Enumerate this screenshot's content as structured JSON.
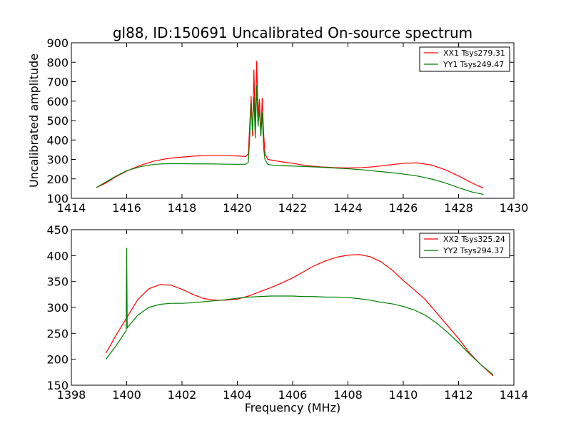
{
  "chart_data": [
    {
      "type": "line",
      "title": "gl88, ID:150691 Uncalibrated On-source spectrum",
      "xlabel": "",
      "ylabel": "Uncalibrated amplitude",
      "xlim": [
        1414,
        1430
      ],
      "ylim": [
        100,
        900
      ],
      "xticks": [
        1414,
        1416,
        1418,
        1420,
        1422,
        1424,
        1426,
        1428,
        1430
      ],
      "yticks": [
        100,
        200,
        300,
        400,
        500,
        600,
        700,
        800,
        900
      ],
      "grid": false,
      "legend_position": "top-right",
      "series": [
        {
          "name": "XX1 Tsys279.31",
          "color": "#ff0000",
          "x": [
            1414.9,
            1415.2,
            1415.6,
            1416.0,
            1416.5,
            1417.0,
            1417.5,
            1418.0,
            1418.5,
            1419.0,
            1419.5,
            1420.0,
            1420.3,
            1420.4,
            1420.45,
            1420.5,
            1420.55,
            1420.6,
            1420.65,
            1420.7,
            1420.75,
            1420.8,
            1420.85,
            1420.9,
            1420.95,
            1421.0,
            1421.1,
            1421.3,
            1421.5,
            1422.0,
            1422.5,
            1423.0,
            1423.5,
            1424.0,
            1424.5,
            1425.0,
            1425.5,
            1426.0,
            1426.5,
            1427.0,
            1427.5,
            1428.0,
            1428.5,
            1428.9
          ],
          "y": [
            155,
            175,
            210,
            240,
            270,
            292,
            305,
            312,
            318,
            320,
            320,
            318,
            315,
            330,
            480,
            625,
            420,
            760,
            460,
            805,
            520,
            610,
            420,
            615,
            440,
            330,
            300,
            295,
            290,
            280,
            268,
            262,
            258,
            256,
            258,
            263,
            272,
            280,
            282,
            272,
            248,
            215,
            178,
            152
          ]
        },
        {
          "name": "YY1 Tsys249.47",
          "color": "#008000",
          "x": [
            1414.9,
            1415.2,
            1415.6,
            1416.0,
            1416.5,
            1417.0,
            1417.5,
            1418.0,
            1418.5,
            1419.0,
            1419.5,
            1420.0,
            1420.3,
            1420.4,
            1420.45,
            1420.5,
            1420.55,
            1420.6,
            1420.65,
            1420.7,
            1420.75,
            1420.8,
            1420.85,
            1420.9,
            1420.95,
            1421.0,
            1421.1,
            1421.3,
            1421.5,
            1422.0,
            1422.5,
            1423.0,
            1423.5,
            1424.0,
            1424.5,
            1425.0,
            1425.5,
            1426.0,
            1426.5,
            1427.0,
            1427.5,
            1428.0,
            1428.5,
            1428.9
          ],
          "y": [
            155,
            180,
            213,
            242,
            263,
            275,
            278,
            278,
            277,
            277,
            276,
            275,
            275,
            285,
            420,
            590,
            450,
            620,
            410,
            680,
            470,
            560,
            420,
            540,
            360,
            300,
            275,
            270,
            268,
            266,
            263,
            260,
            256,
            252,
            247,
            240,
            233,
            225,
            215,
            200,
            180,
            155,
            132,
            120
          ]
        }
      ]
    },
    {
      "type": "line",
      "title": "",
      "xlabel": "Frequency (MHz)",
      "ylabel": "",
      "xlim": [
        1398,
        1414
      ],
      "ylim": [
        150,
        450
      ],
      "xticks": [
        1398,
        1400,
        1402,
        1404,
        1406,
        1408,
        1410,
        1412,
        1414
      ],
      "yticks": [
        150,
        200,
        250,
        300,
        350,
        400,
        450
      ],
      "grid": false,
      "legend_position": "top-right",
      "series": [
        {
          "name": "XX2 Tsys325.24",
          "color": "#ff0000",
          "x": [
            1399.25,
            1399.6,
            1400.0,
            1400.4,
            1400.8,
            1401.2,
            1401.6,
            1402.0,
            1402.4,
            1402.8,
            1403.2,
            1403.6,
            1404.0,
            1404.4,
            1404.8,
            1405.2,
            1405.6,
            1406.0,
            1406.4,
            1406.8,
            1407.2,
            1407.6,
            1408.0,
            1408.4,
            1408.8,
            1409.2,
            1409.6,
            1410.0,
            1410.4,
            1410.8,
            1411.2,
            1411.6,
            1412.0,
            1412.4,
            1412.8,
            1413.25
          ],
          "y": [
            212,
            245,
            280,
            315,
            336,
            344,
            343,
            335,
            325,
            317,
            314,
            314,
            316,
            322,
            330,
            338,
            347,
            357,
            369,
            381,
            390,
            397,
            401,
            402,
            398,
            388,
            372,
            352,
            334,
            315,
            290,
            265,
            240,
            212,
            190,
            168
          ]
        },
        {
          "name": "YY2 Tsys294.37",
          "color": "#008000",
          "x": [
            1399.25,
            1399.6,
            1399.98,
            1400.0,
            1400.02,
            1400.04,
            1400.4,
            1400.8,
            1401.2,
            1401.6,
            1402.0,
            1402.4,
            1402.8,
            1403.2,
            1403.6,
            1404.0,
            1404.4,
            1404.8,
            1405.2,
            1405.6,
            1406.0,
            1406.4,
            1406.8,
            1407.2,
            1407.6,
            1408.0,
            1408.4,
            1408.8,
            1409.2,
            1409.6,
            1410.0,
            1410.4,
            1410.8,
            1411.2,
            1411.6,
            1412.0,
            1412.4,
            1412.8,
            1413.25
          ],
          "y": [
            200,
            225,
            255,
            414,
            260,
            262,
            285,
            300,
            306,
            308,
            308,
            309,
            311,
            313,
            315,
            318,
            320,
            321,
            322,
            322,
            322,
            321,
            321,
            320,
            320,
            319,
            317,
            314,
            310,
            307,
            302,
            295,
            285,
            270,
            252,
            232,
            210,
            190,
            170
          ]
        }
      ]
    }
  ]
}
